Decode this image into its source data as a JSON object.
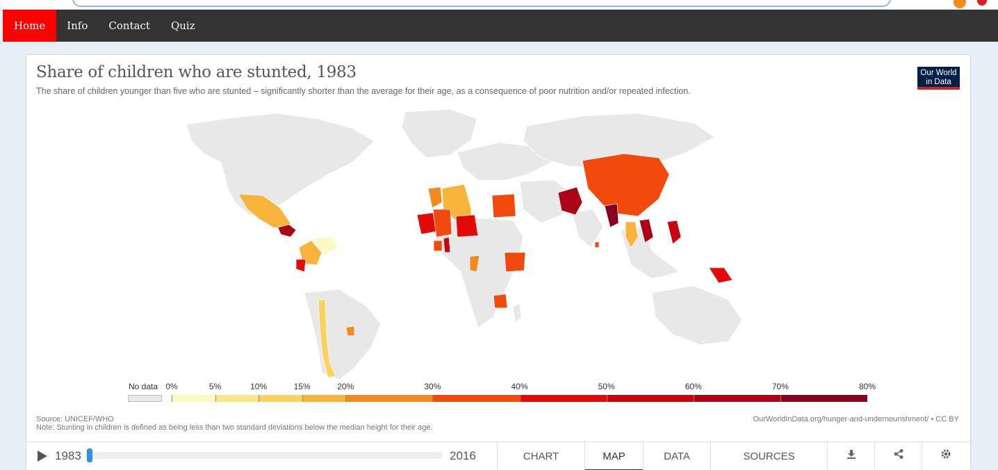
{
  "nav": {
    "items": [
      {
        "label": "Home",
        "active": true
      },
      {
        "label": "Info",
        "active": false
      },
      {
        "label": "Contact",
        "active": false
      },
      {
        "label": "Quiz",
        "active": false
      }
    ]
  },
  "chart": {
    "title": "Share of children who are stunted, 1983",
    "subtitle": "The share of children younger than five who are stunted – significantly shorter than the average for their age, as a consequence of poor nutrition and/or repeated infection.",
    "logo_line1": "Our World",
    "logo_line2": "in Data",
    "source": "Source: UNICEF/WHO",
    "note": "Note: Stunting in children is defined as being less than two standard deviations below the median height for their age.",
    "url": "OurWorldInData.org/hunger-and-undernourishment/ • CC BY"
  },
  "chart_data": {
    "type": "map",
    "title": "Share of children who are stunted, 1983",
    "legend": {
      "no_data_label": "No data",
      "no_data_color": "#e8e8e8",
      "ticks": [
        "0%",
        "5%",
        "10%",
        "15%",
        "20%",
        "30%",
        "40%",
        "50%",
        "60%",
        "70%",
        "80%"
      ],
      "bins": [
        {
          "from": 0,
          "to": 5,
          "color": "#fef8c3"
        },
        {
          "from": 5,
          "to": 10,
          "color": "#fde68a"
        },
        {
          "from": 10,
          "to": 15,
          "color": "#fcd15d"
        },
        {
          "from": 15,
          "to": 20,
          "color": "#f8b33a"
        },
        {
          "from": 20,
          "to": 30,
          "color": "#f4891f"
        },
        {
          "from": 30,
          "to": 40,
          "color": "#f24a0d"
        },
        {
          "from": 40,
          "to": 50,
          "color": "#e30a0a"
        },
        {
          "from": 50,
          "to": 60,
          "color": "#c8050f"
        },
        {
          "from": 60,
          "to": 70,
          "color": "#ad0317"
        },
        {
          "from": 70,
          "to": 80,
          "color": "#880020"
        }
      ]
    },
    "regions_with_data": [
      {
        "region": "Mexico",
        "color": "#f8b33a"
      },
      {
        "region": "Guatemala",
        "color": "#ad0317"
      },
      {
        "region": "Colombia",
        "color": "#f8b33a"
      },
      {
        "region": "Venezuela",
        "color": "#fef8c3"
      },
      {
        "region": "Ecuador",
        "color": "#e30a0a"
      },
      {
        "region": "Chile",
        "color": "#fcd15d"
      },
      {
        "region": "Uruguay",
        "color": "#f4891f"
      },
      {
        "region": "Algeria",
        "color": "#f8b33a"
      },
      {
        "region": "Morocco",
        "color": "#f4891f"
      },
      {
        "region": "Mauritania",
        "color": "#e30a0a"
      },
      {
        "region": "Mali",
        "color": "#f24a0d"
      },
      {
        "region": "Niger",
        "color": "#e30a0a"
      },
      {
        "region": "Ghana",
        "color": "#c8050f"
      },
      {
        "region": "Togo",
        "color": "#f24a0d"
      },
      {
        "region": "Egypt",
        "color": "#f24a0d"
      },
      {
        "region": "Congo",
        "color": "#f4891f"
      },
      {
        "region": "Kenya",
        "color": "#f24a0d"
      },
      {
        "region": "Zimbabwe",
        "color": "#f24a0d"
      },
      {
        "region": "Pakistan",
        "color": "#ad0317"
      },
      {
        "region": "Sri Lanka",
        "color": "#f24a0d"
      },
      {
        "region": "China",
        "color": "#f24a0d"
      },
      {
        "region": "Myanmar",
        "color": "#880020"
      },
      {
        "region": "Thailand",
        "color": "#f8b33a"
      },
      {
        "region": "Vietnam",
        "color": "#ad0317"
      },
      {
        "region": "Philippines",
        "color": "#c8050f"
      },
      {
        "region": "Papua New Guinea",
        "color": "#e30a0a"
      }
    ]
  },
  "controls": {
    "year_start": "1983",
    "year_end": "2016",
    "tabs": [
      {
        "label": "CHART",
        "active": false
      },
      {
        "label": "MAP",
        "active": true
      },
      {
        "label": "DATA",
        "active": false
      },
      {
        "label": "SOURCES",
        "active": false
      }
    ],
    "icons": [
      "download-icon",
      "share-icon",
      "settings-icon"
    ]
  }
}
